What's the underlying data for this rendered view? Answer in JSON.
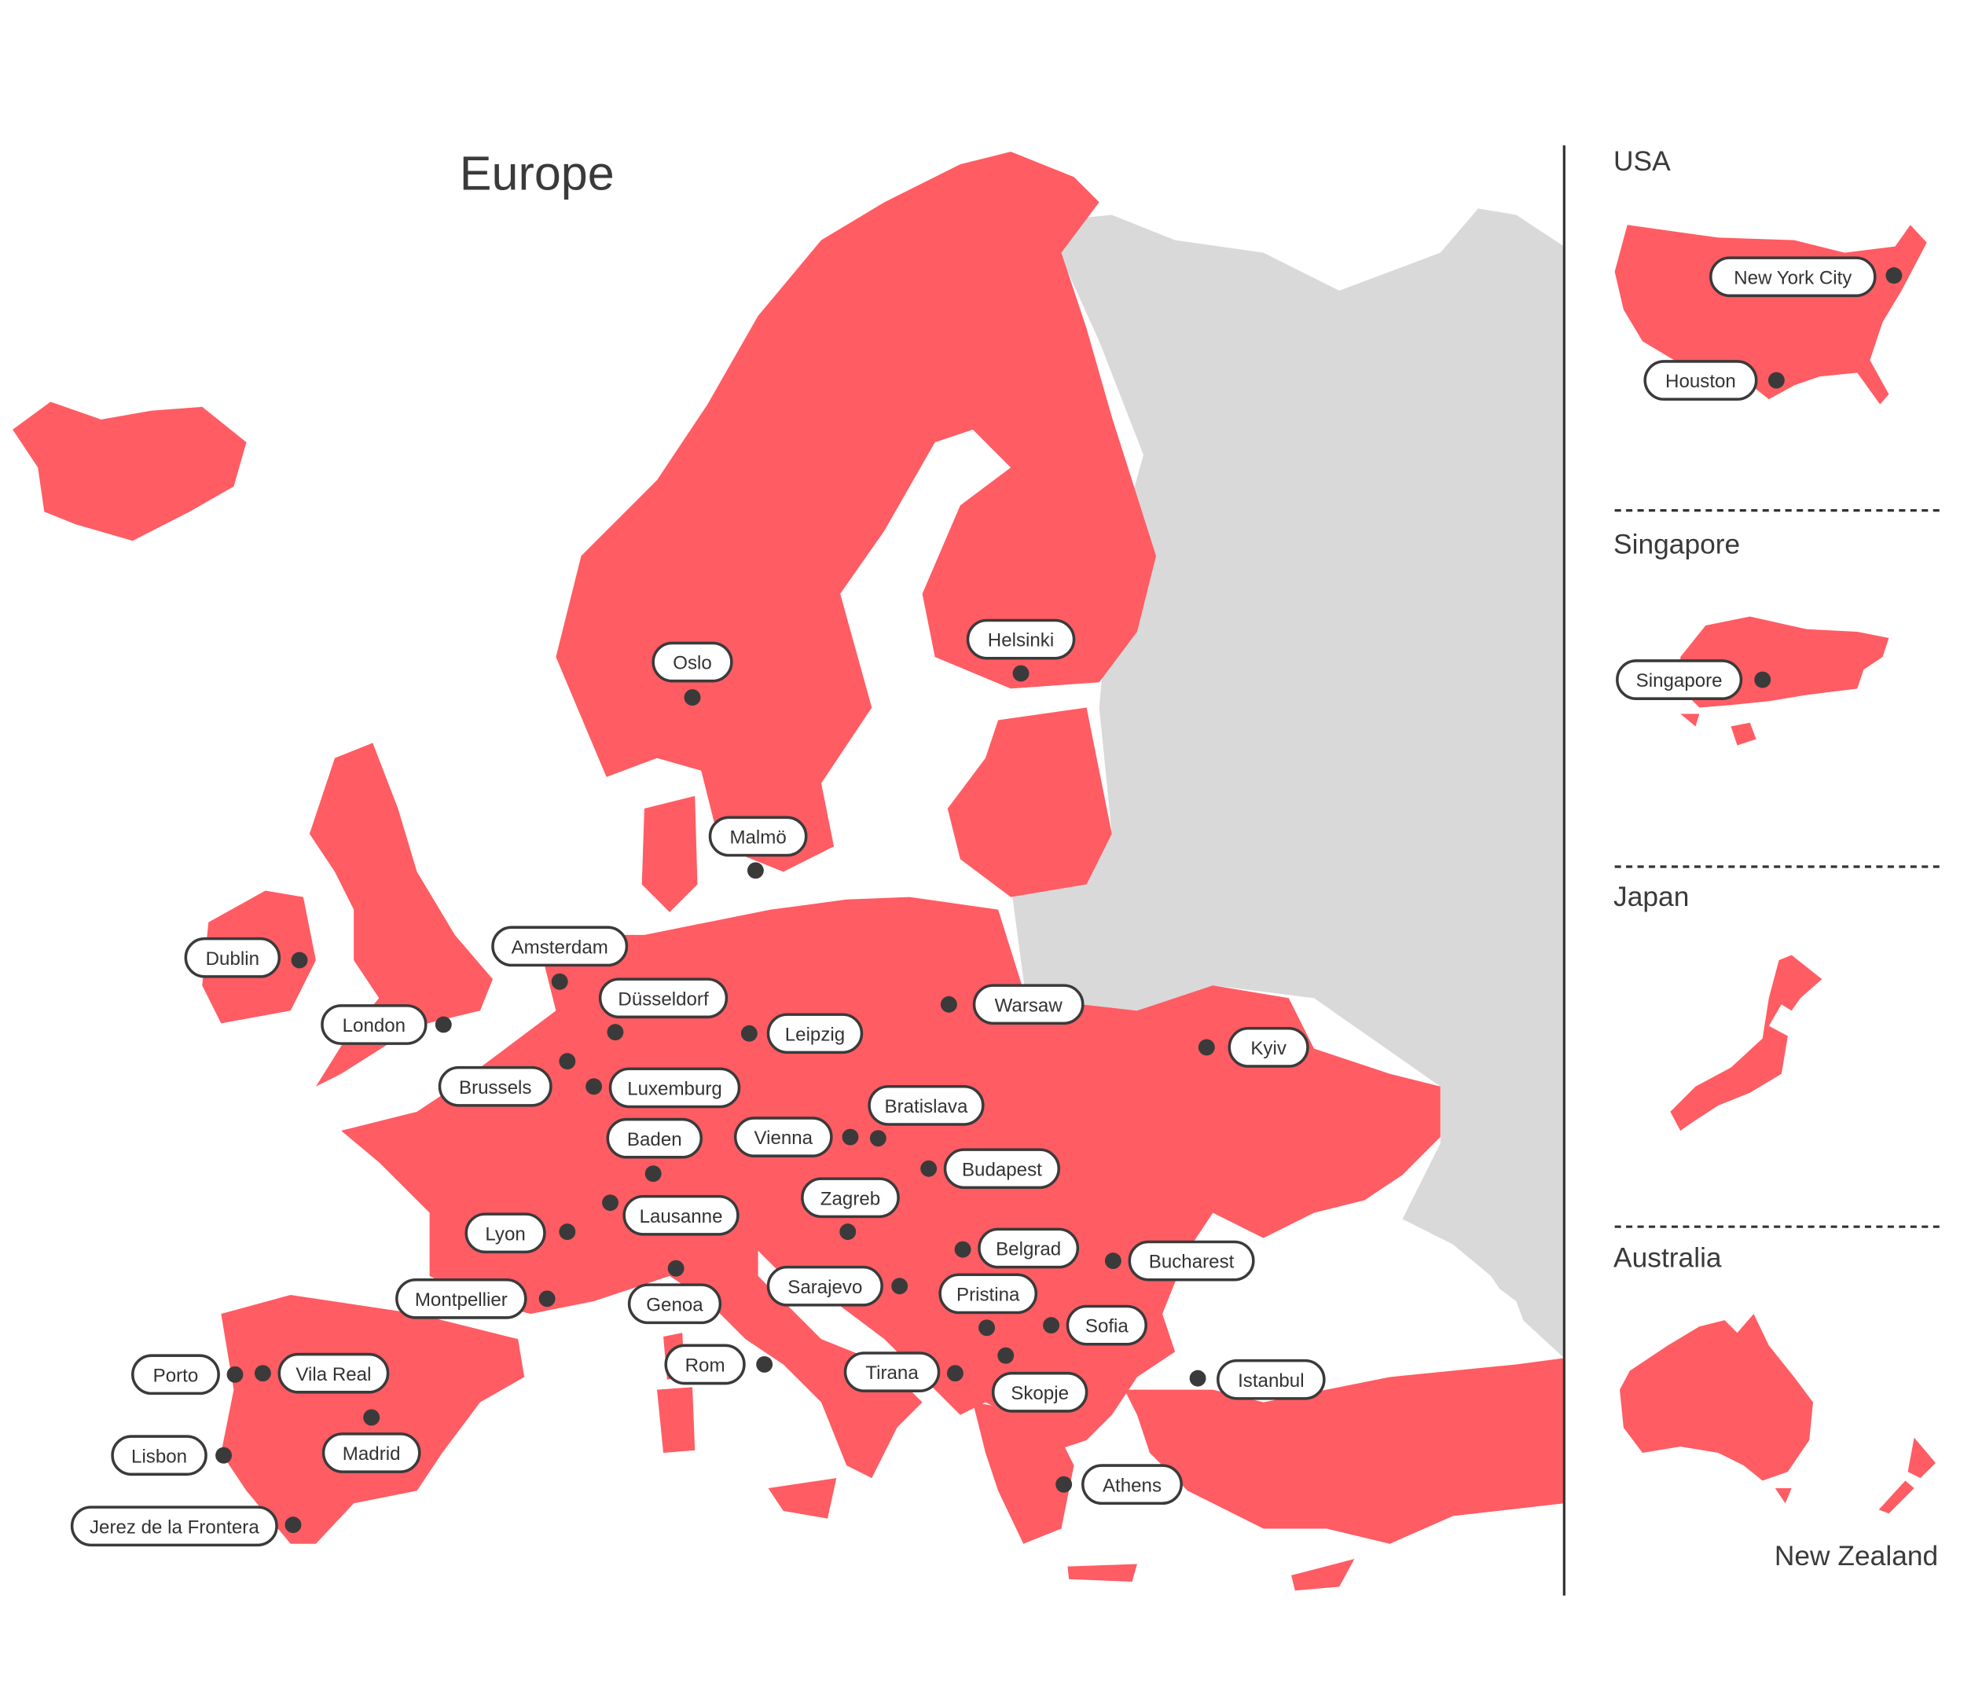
{
  "colors": {
    "land_highlight": "#FF5C63",
    "land_other": "#D9D9D9",
    "pin": "#3A3A3A",
    "border": "#FFFFFF"
  },
  "europe": {
    "title": "Europe",
    "cities": [
      "Oslo",
      "Helsinki",
      "Malmö",
      "Dublin",
      "Amsterdam",
      "Düsseldorf",
      "Leipzig",
      "Warsaw",
      "London",
      "Kyiv",
      "Brussels",
      "Luxemburg",
      "Bratislava",
      "Baden",
      "Vienna",
      "Budapest",
      "Zagreb",
      "Lausanne",
      "Lyon",
      "Belgrad",
      "Bucharest",
      "Montpellier",
      "Sarajevo",
      "Genoa",
      "Pristina",
      "Sofia",
      "Porto",
      "Vila Real",
      "Rom",
      "Tirana",
      "Istanbul",
      "Skopje",
      "Madrid",
      "Lisbon",
      "Athens",
      "Jerez de la Frontera"
    ]
  },
  "insets": {
    "usa": {
      "title": "USA",
      "cities": [
        "New York City",
        "Houston"
      ]
    },
    "singapore": {
      "title": "Singapore",
      "cities": [
        "Singapore"
      ]
    },
    "japan": {
      "title": "Japan"
    },
    "australia": {
      "title": "Australia",
      "secondary_title": "New Zealand"
    }
  }
}
